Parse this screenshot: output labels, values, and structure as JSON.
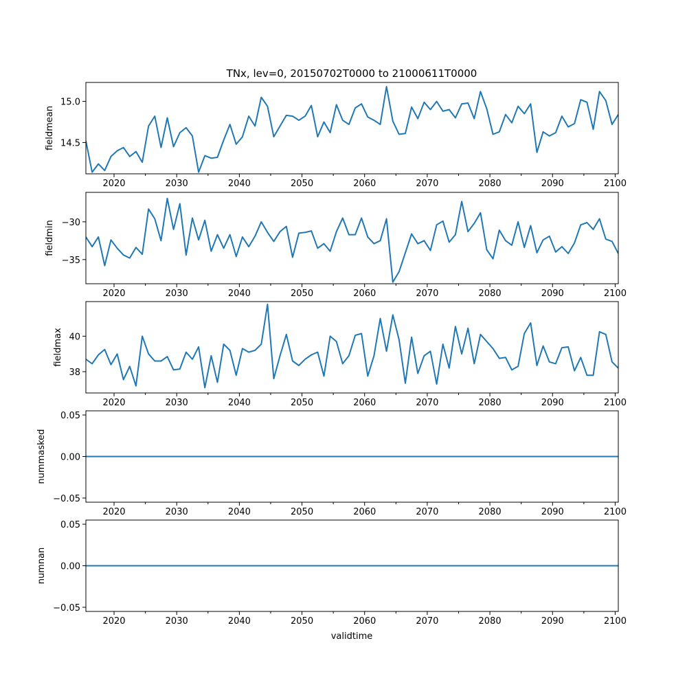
{
  "chart_data": {
    "type": "line",
    "title": "TNx, lev=0, 20150702T0000 to 21000611T0000",
    "xlabel": "validtime",
    "line_color": "#1f77b4",
    "x_range": [
      2015.5,
      2100.5
    ],
    "x_major_ticks": [
      2020,
      2030,
      2040,
      2050,
      2060,
      2070,
      2080,
      2090,
      2100
    ],
    "x_minor_ticks": [
      2025,
      2035,
      2045,
      2055,
      2065,
      2075,
      2085,
      2095
    ],
    "panels": [
      {
        "ylabel": "fieldmean",
        "ylim": [
          14.12,
          15.23
        ],
        "yticks": [
          14.5,
          15.0
        ],
        "ytick_labels": [
          "14.5",
          "15.0"
        ],
        "x_start": 2015.5,
        "values": [
          14.52,
          14.14,
          14.24,
          14.16,
          14.33,
          14.4,
          14.44,
          14.33,
          14.39,
          14.26,
          14.7,
          14.82,
          14.44,
          14.8,
          14.45,
          14.62,
          14.68,
          14.58,
          14.14,
          14.34,
          14.31,
          14.32,
          14.53,
          14.72,
          14.48,
          14.57,
          14.82,
          14.7,
          15.05,
          14.94,
          14.57,
          14.7,
          14.83,
          14.82,
          14.77,
          14.82,
          14.95,
          14.57,
          14.75,
          14.62,
          14.96,
          14.77,
          14.72,
          14.92,
          14.97,
          14.81,
          14.77,
          14.72,
          15.18,
          14.76,
          14.6,
          14.61,
          14.93,
          14.79,
          14.99,
          14.9,
          15.0,
          14.88,
          14.9,
          14.8,
          14.97,
          14.98,
          14.79,
          15.12,
          14.91,
          14.6,
          14.63,
          14.84,
          14.74,
          14.94,
          14.85,
          14.97,
          14.38,
          14.63,
          14.58,
          14.62,
          14.82,
          14.69,
          14.73,
          15.02,
          14.99,
          14.66,
          15.12,
          15.01,
          14.72,
          14.84
        ]
      },
      {
        "ylabel": "fieldmin",
        "ylim": [
          -38.2,
          -26.1
        ],
        "yticks": [
          -35,
          -30
        ],
        "ytick_labels": [
          "−35",
          "−30"
        ],
        "x_start": 2015.5,
        "values": [
          -32.0,
          -33.3,
          -32.0,
          -35.8,
          -32.4,
          -33.5,
          -34.4,
          -34.8,
          -33.4,
          -34.3,
          -28.3,
          -29.6,
          -32.5,
          -26.9,
          -31.0,
          -27.6,
          -34.4,
          -29.5,
          -32.4,
          -29.8,
          -33.9,
          -31.7,
          -33.5,
          -31.7,
          -34.6,
          -32.0,
          -33.3,
          -31.9,
          -30.0,
          -31.4,
          -32.6,
          -31.3,
          -30.6,
          -34.7,
          -31.5,
          -31.4,
          -31.2,
          -33.5,
          -32.9,
          -33.9,
          -31.3,
          -29.5,
          -31.7,
          -31.7,
          -29.5,
          -32.0,
          -32.9,
          -32.5,
          -29.6,
          -38.0,
          -36.6,
          -34.1,
          -31.6,
          -32.9,
          -32.5,
          -33.8,
          -30.4,
          -29.9,
          -32.7,
          -31.7,
          -27.3,
          -31.3,
          -30.2,
          -28.8,
          -33.7,
          -34.9,
          -31.1,
          -32.5,
          -33.1,
          -30.0,
          -33.4,
          -30.5,
          -34.1,
          -32.4,
          -31.9,
          -34.0,
          -33.3,
          -34.2,
          -32.8,
          -30.4,
          -30.1,
          -31.0,
          -29.6,
          -32.3,
          -32.6,
          -34.2
        ]
      },
      {
        "ylabel": "fieldmax",
        "ylim": [
          36.8,
          41.95
        ],
        "yticks": [
          38,
          40
        ],
        "ytick_labels": [
          "38",
          "40"
        ],
        "x_start": 2015.5,
        "values": [
          38.7,
          38.45,
          38.95,
          39.25,
          38.4,
          39.0,
          37.55,
          38.3,
          37.2,
          40.0,
          39.0,
          38.6,
          38.6,
          38.85,
          38.1,
          38.15,
          39.1,
          38.7,
          39.4,
          37.1,
          38.9,
          37.4,
          39.55,
          39.2,
          37.8,
          39.3,
          39.1,
          39.2,
          39.55,
          41.8,
          37.6,
          38.9,
          40.1,
          38.6,
          38.35,
          38.7,
          38.95,
          39.1,
          37.75,
          40.0,
          39.7,
          38.45,
          38.9,
          40.05,
          40.15,
          37.75,
          38.9,
          41.0,
          39.15,
          41.2,
          39.8,
          37.35,
          39.95,
          37.9,
          38.9,
          39.15,
          37.3,
          39.55,
          38.2,
          40.55,
          39.0,
          40.45,
          38.45,
          40.1,
          39.7,
          39.3,
          38.75,
          38.8,
          38.1,
          38.3,
          40.15,
          40.75,
          38.35,
          39.45,
          38.55,
          38.45,
          39.35,
          39.4,
          38.05,
          38.8,
          37.8,
          37.8,
          40.25,
          40.1,
          38.55,
          38.2
        ]
      },
      {
        "ylabel": "nummasked",
        "ylim": [
          -0.055,
          0.055
        ],
        "yticks": [
          -0.05,
          0.0,
          0.05
        ],
        "ytick_labels": [
          "−0.05",
          "0.00",
          "0.05"
        ],
        "x_start": 2015.5,
        "constant_value": 0.0
      },
      {
        "ylabel": "numnan",
        "ylim": [
          -0.055,
          0.055
        ],
        "yticks": [
          -0.05,
          0.0,
          0.05
        ],
        "ytick_labels": [
          "−0.05",
          "0.00",
          "0.05"
        ],
        "x_start": 2015.5,
        "constant_value": 0.0
      }
    ]
  }
}
